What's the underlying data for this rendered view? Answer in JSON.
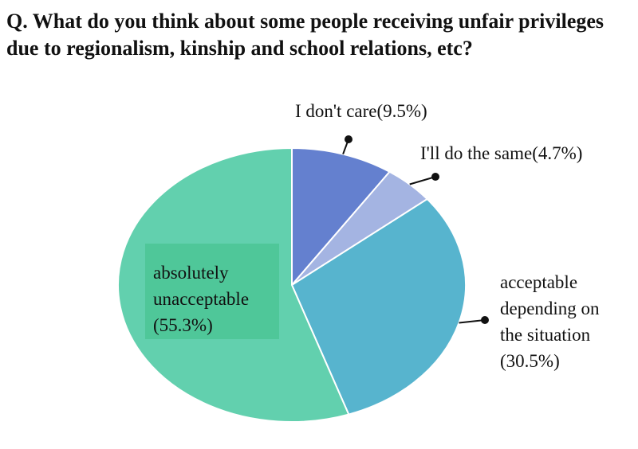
{
  "question": "Q. What do you think about some people receiving unfair privileges due to regionalism, kinship and school relations, etc?",
  "chart_data": {
    "type": "pie",
    "title": "Q. What do you think about some people receiving unfair privileges due to regionalism, kinship and school relations, etc?",
    "slices": [
      {
        "label": "I don't care",
        "value": 9.5,
        "color": "#6480cf",
        "label_lines": [
          "I don't care(9.5%)"
        ]
      },
      {
        "label": "I'll do the same",
        "value": 4.7,
        "color": "#a4b4e2",
        "label_lines": [
          "I'll do the same(4.7%)"
        ]
      },
      {
        "label": "acceptable depending on the situation",
        "value": 30.5,
        "color": "#57b4ce",
        "label_lines": [
          "acceptable",
          "depending on",
          "the situation",
          "(30.5%)"
        ]
      },
      {
        "label": "absolutely unacceptable",
        "value": 55.3,
        "color": "#62d0ae",
        "label_lines": [
          "absolutely",
          "unacceptable",
          "(55.3%)"
        ]
      }
    ]
  }
}
